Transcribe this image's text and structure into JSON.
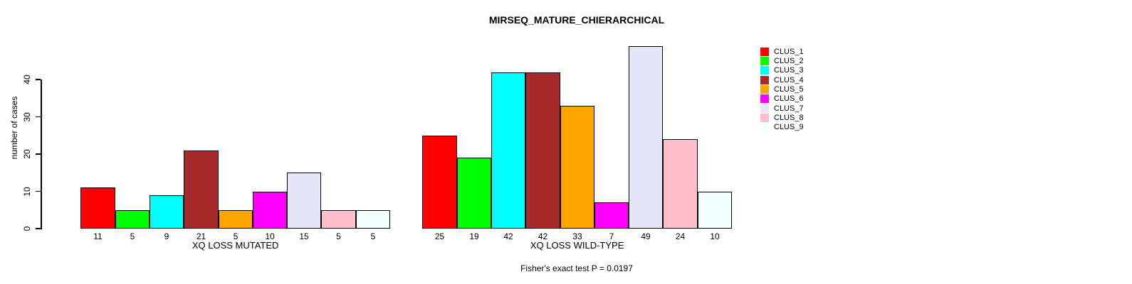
{
  "chart_data": {
    "type": "bar",
    "title": "MIRSEQ_MATURE_CHIERARCHICAL",
    "ylabel": "number of cases",
    "ylim": [
      0,
      40
    ],
    "yticks": [
      0,
      10,
      20,
      30,
      40
    ],
    "grid": false,
    "legend_position": "right-outside",
    "background_color": "#FFFFFF",
    "bar_border_color": "#000000",
    "bar_value_labels": true,
    "series": [
      {
        "name": "CLUS_1",
        "color": "#FF0000"
      },
      {
        "name": "CLUS_2",
        "color": "#00FF00"
      },
      {
        "name": "CLUS_3",
        "color": "#00FFFF"
      },
      {
        "name": "CLUS_4",
        "color": "#A52A2A"
      },
      {
        "name": "CLUS_5",
        "color": "#FFA500"
      },
      {
        "name": "CLUS_6",
        "color": "#FF00FF"
      },
      {
        "name": "CLUS_7",
        "color": "#E6E6FA"
      },
      {
        "name": "CLUS_8",
        "color": "#FFC0CB"
      },
      {
        "name": "CLUS_9",
        "color": "#F0FFFF"
      }
    ],
    "groups": [
      {
        "label": "XQ LOSS MUTATED",
        "values": [
          11,
          5,
          9,
          21,
          5,
          10,
          15,
          5,
          5
        ]
      },
      {
        "label": "XQ LOSS WILD-TYPE",
        "values": [
          25,
          19,
          42,
          42,
          33,
          7,
          49,
          24,
          10
        ]
      }
    ],
    "annotation": "Fisher's exact test P = 0.0197"
  }
}
